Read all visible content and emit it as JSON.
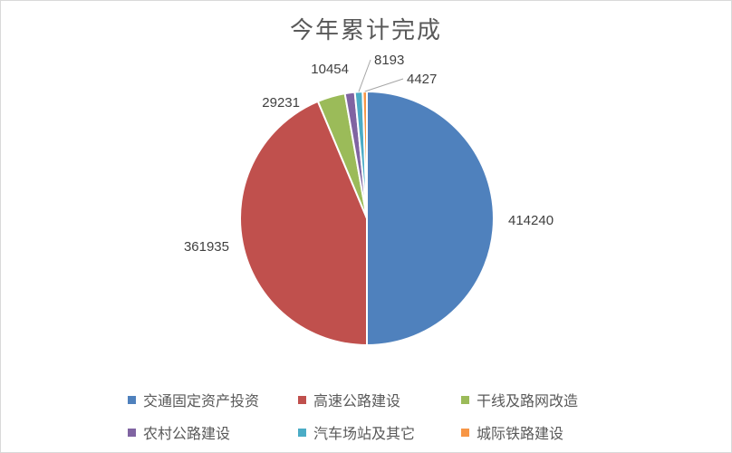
{
  "chart_data": {
    "type": "pie",
    "title": "今年累计完成",
    "categories": [
      "交通固定资产投资",
      "高速公路建设",
      "干线及路网改造",
      "农村公路建设",
      "汽车场站及其它",
      "城际铁路建设"
    ],
    "values": [
      414240,
      361935,
      29231,
      10454,
      8193,
      4427
    ],
    "value_labels": [
      "414240",
      "361935",
      "29231",
      "10454",
      "8193",
      "4427"
    ],
    "colors": [
      "#4f81bd",
      "#c0504d",
      "#9bbb59",
      "#8064a2",
      "#4bacc6",
      "#f79646"
    ],
    "start_angle": "12 o'clock",
    "direction": "clockwise",
    "legend_position": "bottom"
  }
}
